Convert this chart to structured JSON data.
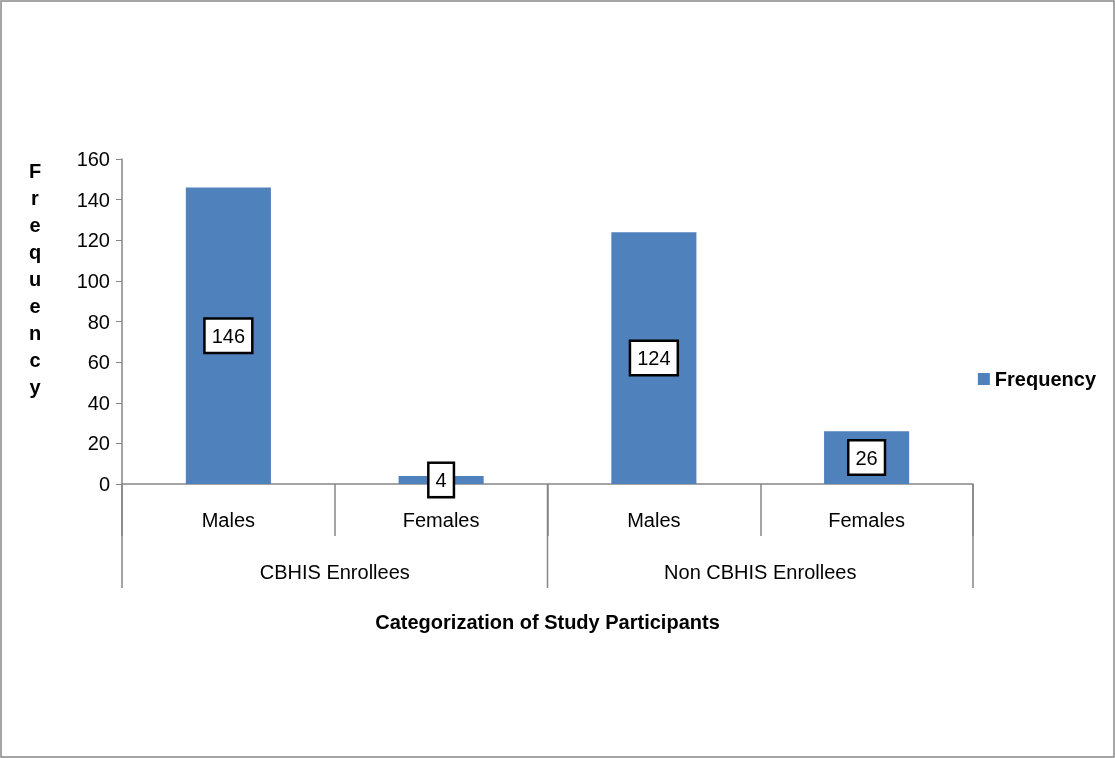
{
  "chart_data": {
    "type": "bar",
    "xlabel": "Categorization of Study Participants",
    "ylabel": "Frequency",
    "categories": [
      "Males",
      "Females",
      "Males",
      "Females"
    ],
    "series": [
      {
        "name": "Frequency",
        "color": "#4f81bd",
        "values": [
          146,
          4,
          124,
          26
        ]
      }
    ],
    "annotations": [
      "CBHIS Enrollees",
      "Non CBHIS Enrollees"
    ],
    "ylim": [
      0,
      160
    ],
    "yticks": [
      0,
      20,
      40,
      60,
      80,
      100,
      120,
      140,
      160
    ],
    "data_labels": true,
    "legend": "right",
    "grid": false
  }
}
